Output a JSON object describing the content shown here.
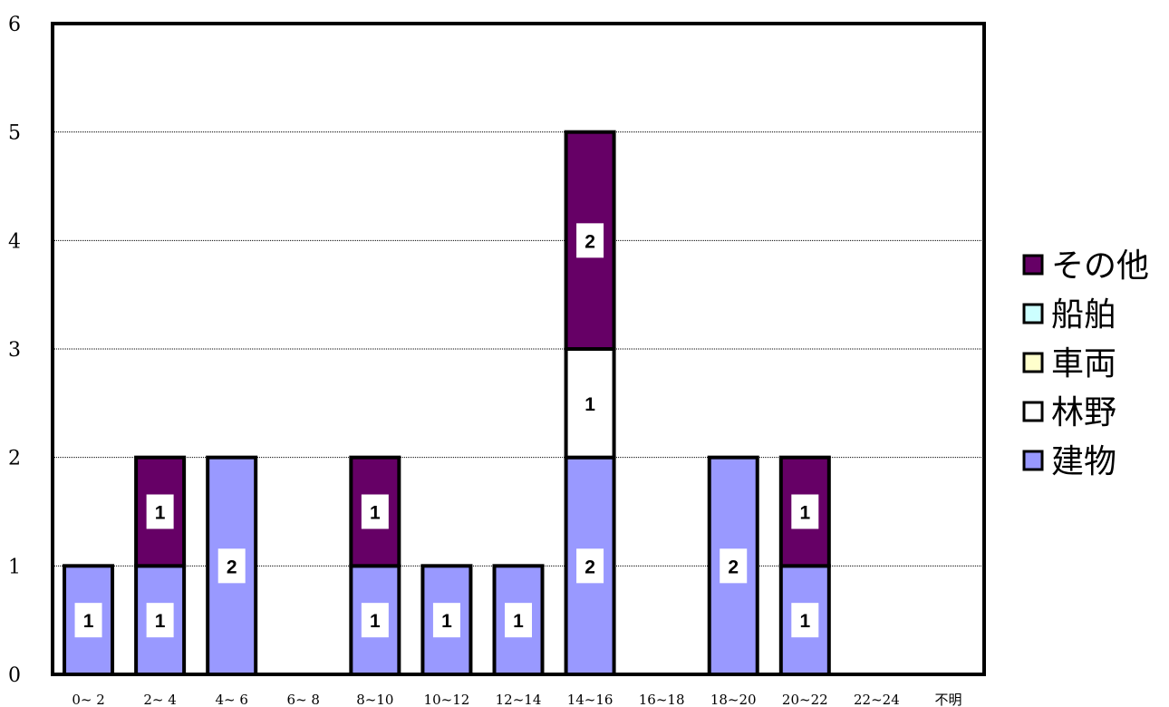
{
  "chart_data": {
    "type": "bar",
    "stacked": true,
    "title": "",
    "xlabel": "",
    "ylabel": "",
    "ylim": [
      0,
      6
    ],
    "yticks": [
      0,
      1,
      2,
      3,
      4,
      5,
      6
    ],
    "grid": true,
    "legend_position": "right",
    "categories": [
      "0~ 2",
      "2~ 4",
      "4~ 6",
      "6~ 8",
      "8~10",
      "10~12",
      "12~14",
      "14~16",
      "16~18",
      "18~20",
      "20~22",
      "22~24",
      "不明"
    ],
    "series": [
      {
        "name": "建物",
        "color": "#9999ff",
        "values": [
          1,
          1,
          2,
          0,
          1,
          1,
          1,
          2,
          0,
          2,
          1,
          0,
          0
        ]
      },
      {
        "name": "林野",
        "color": "#ffffff",
        "values": [
          0,
          0,
          0,
          0,
          0,
          0,
          0,
          1,
          0,
          0,
          0,
          0,
          0
        ]
      },
      {
        "name": "車両",
        "color": "#ffffcc",
        "values": [
          0,
          0,
          0,
          0,
          0,
          0,
          0,
          0,
          0,
          0,
          0,
          0,
          0
        ]
      },
      {
        "name": "船舶",
        "color": "#ccffff",
        "values": [
          0,
          0,
          0,
          0,
          0,
          0,
          0,
          0,
          0,
          0,
          0,
          0,
          0
        ]
      },
      {
        "name": "その他",
        "color": "#660066",
        "values": [
          0,
          1,
          0,
          0,
          1,
          0,
          0,
          2,
          0,
          0,
          1,
          0,
          0
        ]
      }
    ],
    "legend_order": [
      "その他",
      "船舶",
      "車両",
      "林野",
      "建物"
    ]
  }
}
